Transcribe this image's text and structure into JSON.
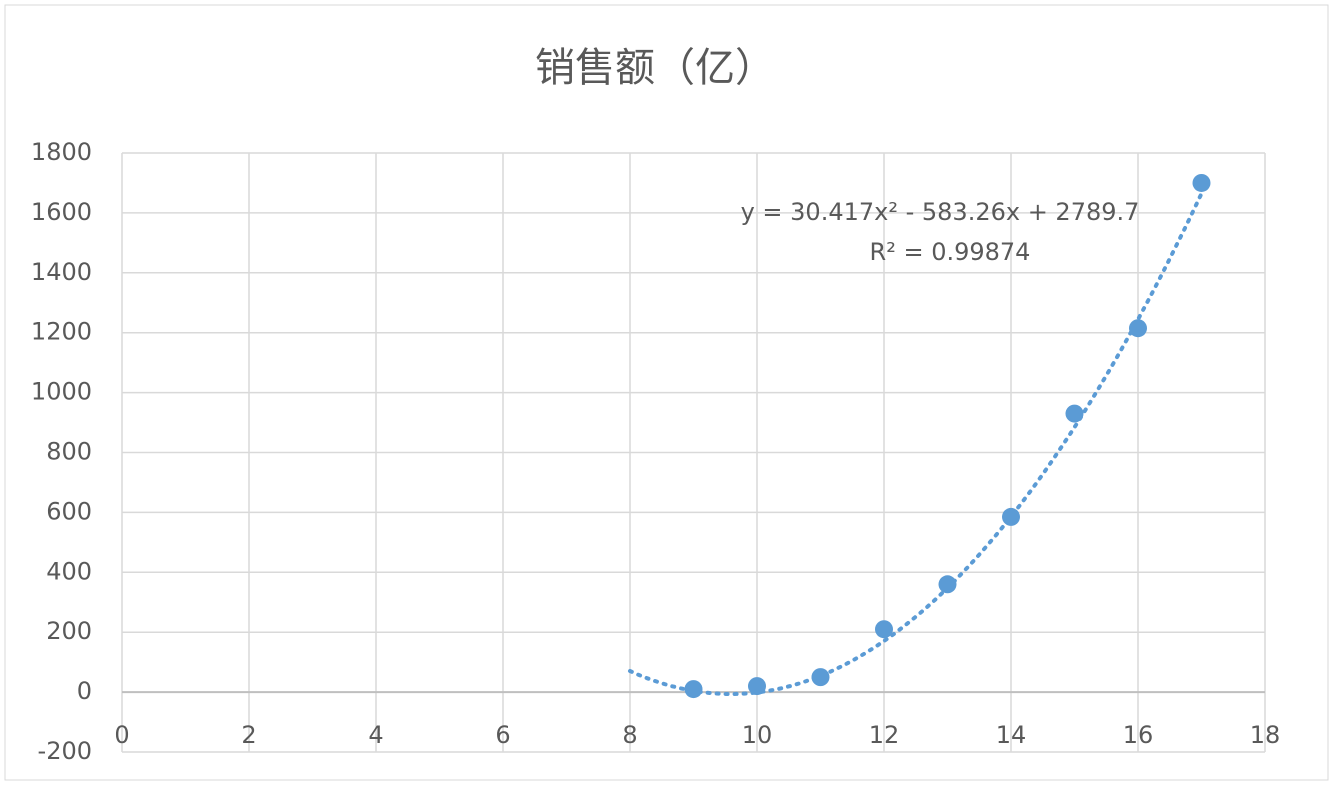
{
  "chart_data": {
    "type": "scatter",
    "title": "销售额（亿）",
    "series": [
      {
        "name": "销售额（亿）",
        "color": "#5b9bd5",
        "x": [
          9,
          10,
          11,
          12,
          13,
          14,
          15,
          16,
          17
        ],
        "values": [
          10,
          20,
          50,
          210,
          360,
          585,
          930,
          1215,
          1700
        ]
      }
    ],
    "trendline": {
      "type": "polynomial",
      "coefficients": [
        30.417,
        -583.26,
        2789.7
      ],
      "xrange": [
        8,
        17
      ],
      "equation": "y = 30.417x² - 583.26x + 2789.7",
      "r_squared": "R² = 0.99874"
    },
    "xlim": [
      0,
      18
    ],
    "xticks": [
      0,
      2,
      4,
      6,
      8,
      10,
      12,
      14,
      16,
      18
    ],
    "ylim": [
      -200,
      1800
    ],
    "yticks": [
      -200,
      0,
      200,
      400,
      600,
      800,
      1000,
      1200,
      1400,
      1600,
      1800
    ],
    "grid": true
  }
}
